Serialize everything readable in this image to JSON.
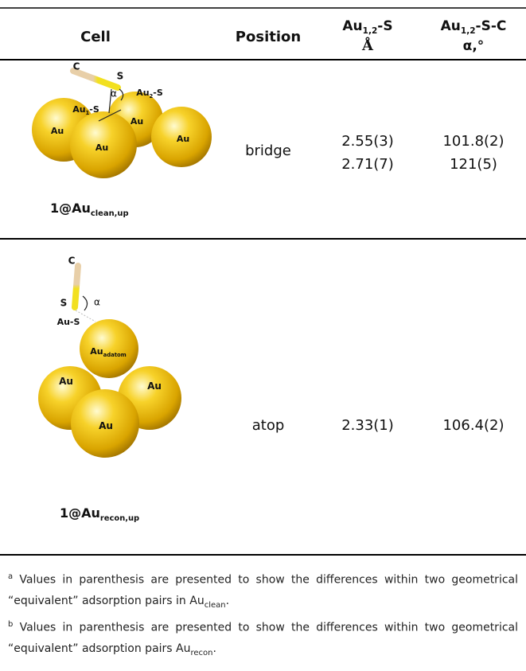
{
  "table": {
    "header": [
      {
        "text": "Cell"
      },
      {
        "text": "Position"
      },
      {
        "base": "Au",
        "sub": "1,2",
        "rest": "-S",
        "unit": "Å"
      },
      {
        "base": "Au",
        "sub": "1,2",
        "rest": "-S-C",
        "unit": "α,°"
      }
    ],
    "rows": [
      {
        "figure": {
          "c": "C",
          "s": "S",
          "alpha": "α",
          "bonds": [
            {
              "base": "Au",
              "sub": "2",
              "rest": "-S"
            },
            {
              "base": "Au",
              "sub": "1",
              "rest": "-S"
            }
          ],
          "spheres": [
            {
              "base": "Au"
            },
            {
              "base": "Au"
            },
            {
              "base": "Au"
            },
            {
              "base": "Au"
            }
          ]
        },
        "cell": {
          "base": "1@Au",
          "sub": "clean,up"
        },
        "position": "bridge",
        "au_s": [
          "2.55(3)",
          "2.71(7)"
        ],
        "angle": [
          "101.8(2)",
          "121(5)"
        ]
      },
      {
        "figure": {
          "c": "C",
          "s": "S",
          "alpha": "α",
          "bonds": [
            {
              "base": "Au-S"
            }
          ],
          "spheres": [
            {
              "base": "Au",
              "sub": "adatom"
            },
            {
              "base": "Au"
            },
            {
              "base": "Au"
            },
            {
              "base": "Au"
            }
          ]
        },
        "cell": {
          "base": "1@Au",
          "sub": "recon,up"
        },
        "position": "atop",
        "au_s": [
          "2.33(1)"
        ],
        "angle": [
          "106.4(2)"
        ]
      }
    ]
  },
  "footnotes": [
    {
      "mark": "a",
      "text": "Values in parenthesis are presented to show the differences within two geometrical “equivalent” adsorption pairs in Au",
      "sub": "clean",
      "end": "."
    },
    {
      "mark": "b",
      "text": "Values in parenthesis are presented to show the differences within two geometrical “equivalent” adsorption pairs Au",
      "sub": "recon",
      "end": "."
    }
  ]
}
